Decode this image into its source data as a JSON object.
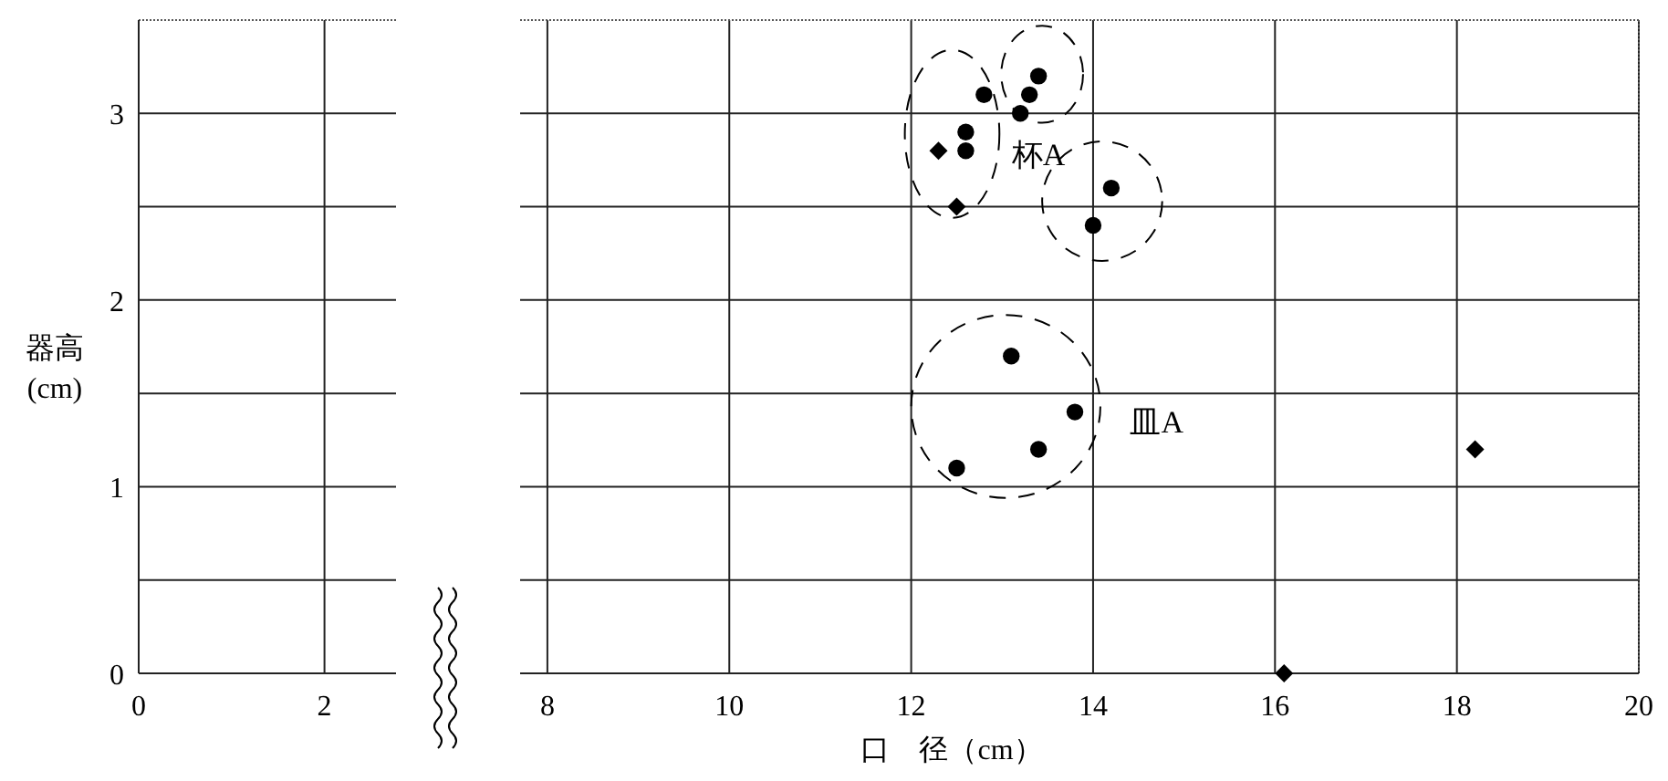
{
  "chart_data": [
    {
      "type": "scatter",
      "ylabel": "器高\n(cm)",
      "xlim": [
        0,
        2.77
      ],
      "xticks": [
        0,
        2
      ],
      "ylim": [
        0,
        3.5
      ],
      "yticks": [
        0,
        {
          "value": 0.5,
          "label": null
        },
        1,
        {
          "value": 1.5,
          "label": null
        },
        2,
        {
          "value": 2.5,
          "label": null
        },
        3
      ],
      "grid": true
    },
    {
      "type": "scatter",
      "xlabel": "口　径（cm）",
      "xlim": [
        7.7,
        20
      ],
      "xticks": [
        8,
        10,
        12,
        14,
        16,
        18,
        20
      ],
      "ylim": [
        0,
        3.5
      ],
      "yticks": [
        0,
        {
          "value": 0.5,
          "label": null
        },
        1,
        {
          "value": 1.5,
          "label": null
        },
        2,
        {
          "value": 2.5,
          "label": null
        },
        3
      ],
      "grid": true,
      "tick_labels": "x",
      "annotations": [
        "杯A",
        "皿A"
      ],
      "series": [
        {
          "color": "#000000",
          "marker": "circle",
          "x": [
            13.4,
            12.8,
            13.3,
            13.2,
            12.6,
            12.6,
            14.2,
            14.0,
            13.1,
            13.8,
            13.4,
            12.5
          ],
          "values": [
            3.2,
            3.1,
            3.1,
            3.0,
            2.9,
            2.8,
            2.6,
            2.4,
            1.7,
            1.4,
            1.2,
            1.1
          ]
        },
        {
          "color": "#000000",
          "marker": "diamond",
          "x": [
            12.3,
            12.5,
            18.2,
            16.1
          ],
          "values": [
            2.8,
            2.5,
            1.2,
            0
          ]
        }
      ]
    }
  ]
}
